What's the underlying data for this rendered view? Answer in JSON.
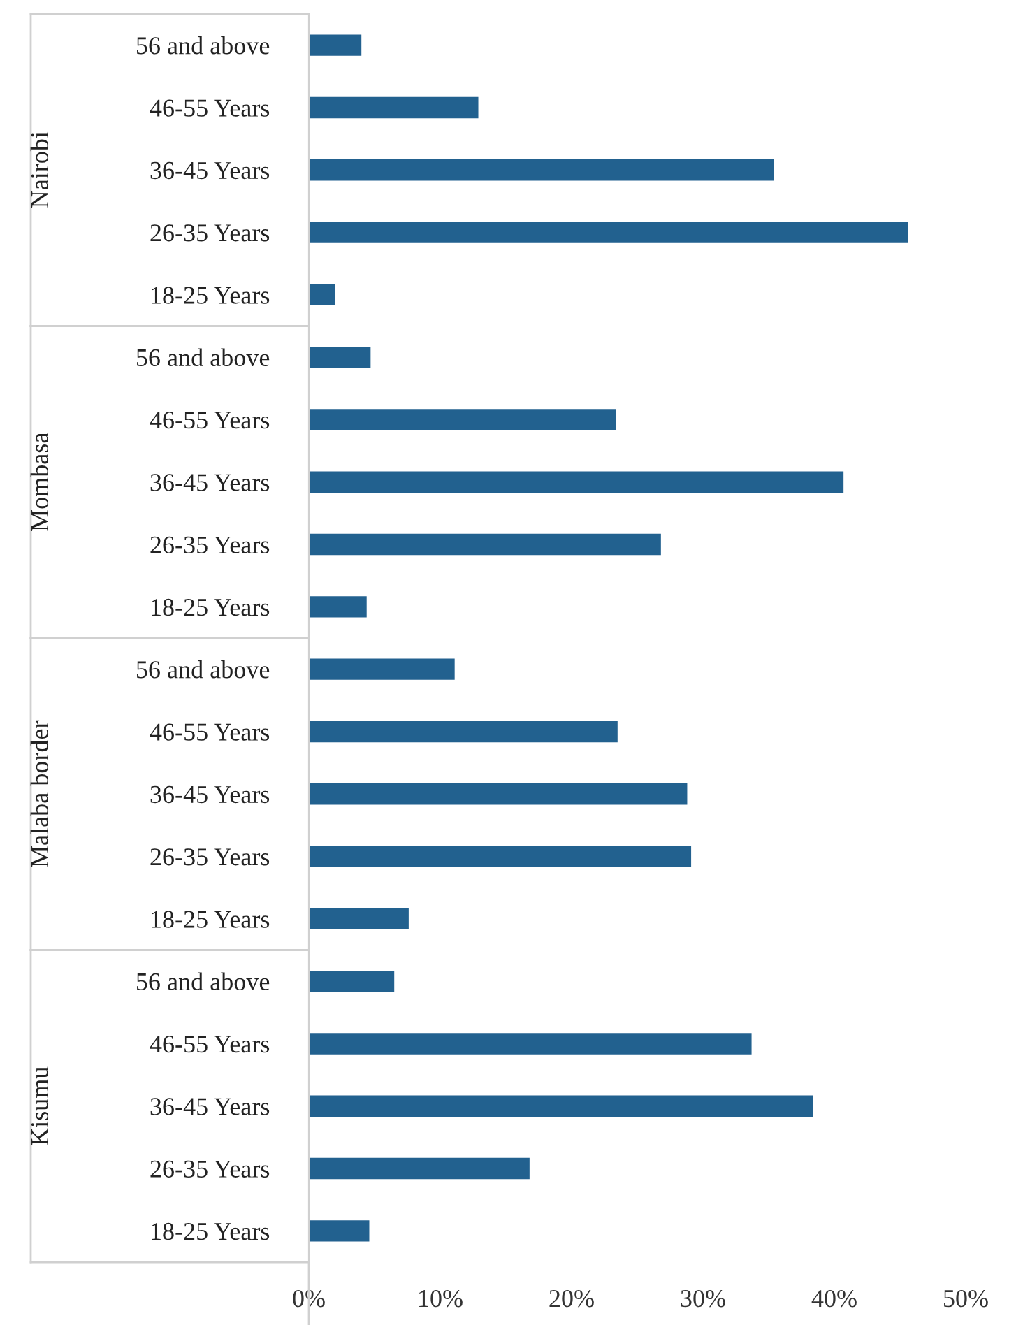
{
  "chart_data": [
    {
      "type": "bar",
      "orientation": "horizontal",
      "title": "Nairobi",
      "categories": [
        "56 and above",
        "46-55 Years",
        "36-45 Years",
        "26-35 Years",
        "18-25 Years"
      ],
      "values": [
        4.0,
        12.9,
        35.4,
        45.6,
        2.0
      ],
      "color": "#22618f",
      "xlim": [
        0,
        50
      ],
      "tick_labels": "y",
      "grid": false
    },
    {
      "type": "bar",
      "orientation": "horizontal",
      "title": "Mombasa",
      "categories": [
        "56 and above",
        "46-55 Years",
        "36-45 Years",
        "26-35 Years",
        "18-25 Years"
      ],
      "values": [
        4.7,
        23.4,
        40.7,
        26.8,
        4.4
      ],
      "color": "#22618f",
      "xlim": [
        0,
        50
      ],
      "tick_labels": "y",
      "grid": false
    },
    {
      "type": "bar",
      "orientation": "horizontal",
      "title": "Malaba border",
      "categories": [
        "56 and above",
        "46-55 Years",
        "36-45 Years",
        "26-35 Years",
        "18-25 Years"
      ],
      "values": [
        11.1,
        23.5,
        28.8,
        29.1,
        7.6
      ],
      "color": "#22618f",
      "xlim": [
        0,
        50
      ],
      "tick_labels": "y",
      "grid": false
    },
    {
      "type": "bar",
      "orientation": "horizontal",
      "title": "Kisumu",
      "categories": [
        "56 and above",
        "46-55 Years",
        "36-45 Years",
        "26-35 Years",
        "18-25 Years"
      ],
      "values": [
        6.5,
        33.7,
        38.4,
        16.8,
        4.6
      ],
      "color": "#22618f",
      "xlim": [
        0,
        50
      ],
      "xticks": [
        {
          "value": 0,
          "label": "0%"
        },
        {
          "value": 10,
          "label": "10%"
        },
        {
          "value": 20,
          "label": "20%"
        },
        {
          "value": 30,
          "label": "30%"
        },
        {
          "value": 40,
          "label": "40%"
        },
        {
          "value": 50,
          "label": "50%"
        }
      ],
      "grid": false
    }
  ]
}
